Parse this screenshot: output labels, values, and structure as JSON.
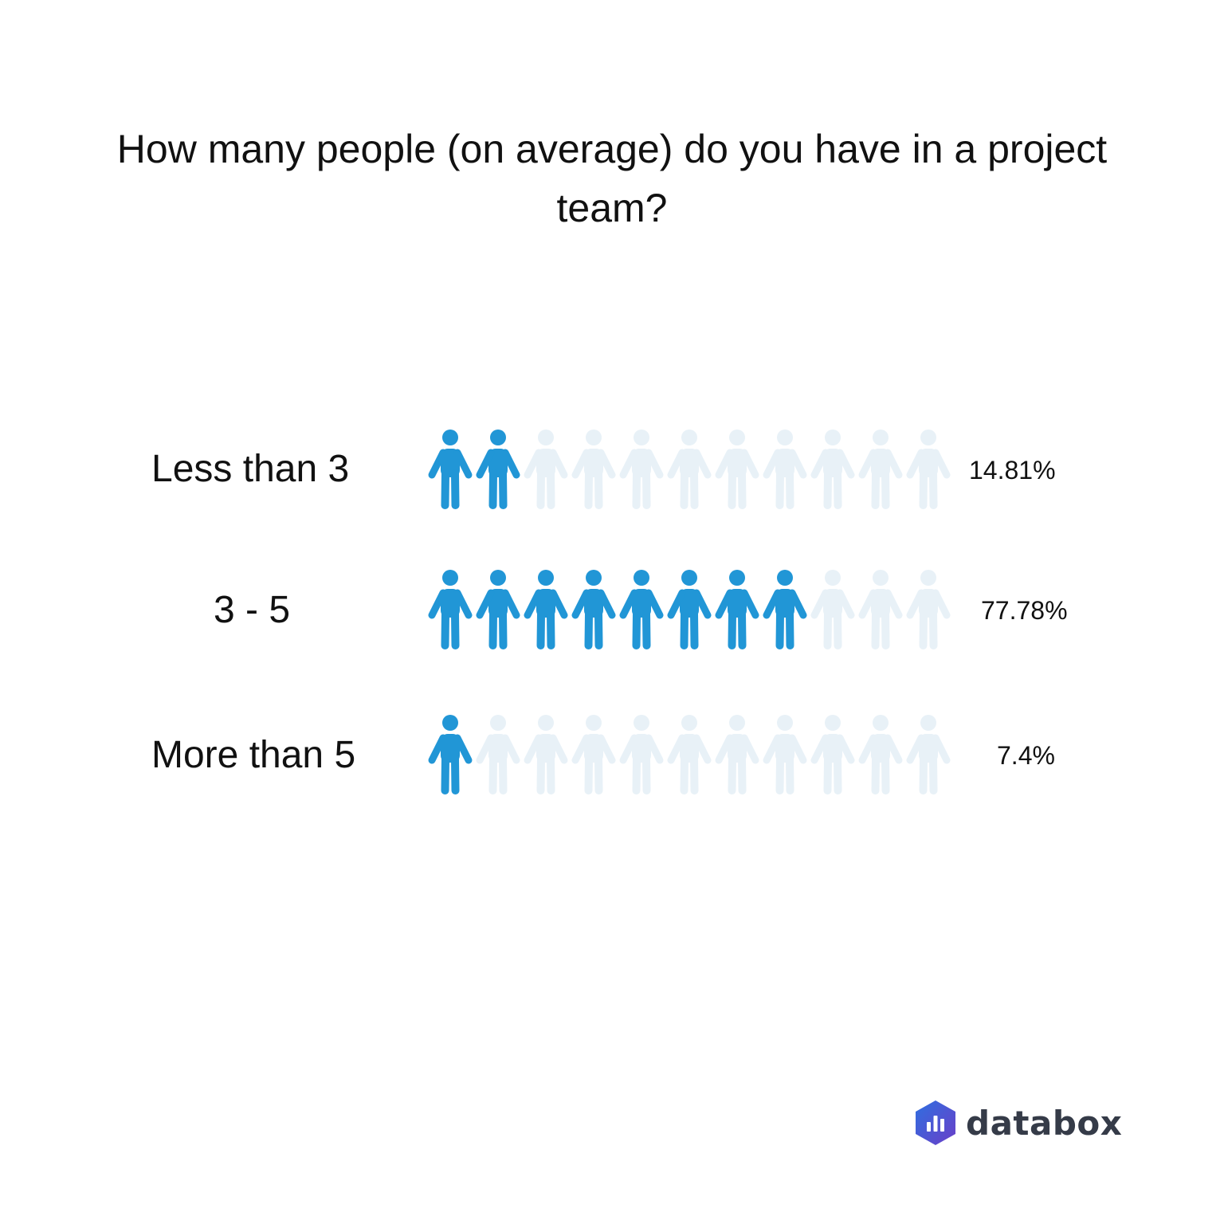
{
  "chart_data": {
    "type": "pictograph",
    "title": "How many people (on average) do you have in a project team?",
    "icons_per_row": 11,
    "categories": [
      "Less than 3",
      "3 - 5",
      "More than 5"
    ],
    "values": [
      14.81,
      77.78,
      7.4
    ],
    "value_labels": [
      "14.81%",
      "77.78%",
      "7.4%"
    ],
    "filled_icons": [
      2,
      8,
      1
    ],
    "unit": "%"
  },
  "colors": {
    "filled": "#2196d6",
    "empty": "#e8f1f7",
    "text": "#111111",
    "logo_text": "#353b48"
  },
  "icon": "person-icon",
  "brand": {
    "name": "databox",
    "icon": "databox-logo-icon"
  }
}
